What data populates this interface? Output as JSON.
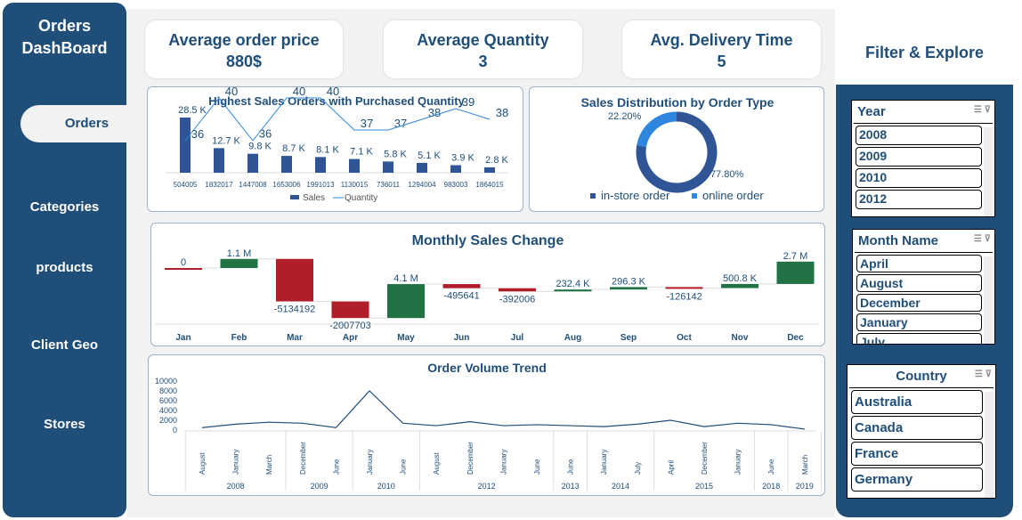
{
  "sidebar": {
    "title": "Orders DashBoard",
    "items": [
      {
        "label": "Orders",
        "active": true
      },
      {
        "label": "Categories"
      },
      {
        "label": "products"
      },
      {
        "label": "Client Geo"
      },
      {
        "label": "Stores"
      }
    ]
  },
  "kpis": [
    {
      "label": "Average order price",
      "value": "880$"
    },
    {
      "label": "Average Quantity",
      "value": "3"
    },
    {
      "label": "Avg. Delivery Time",
      "value": "5"
    }
  ],
  "filter": {
    "title": "Filter & Explore",
    "year": {
      "title": "Year",
      "items": [
        "2008",
        "2009",
        "2010",
        "2012"
      ]
    },
    "month": {
      "title": "Month Name",
      "items": [
        "April",
        "August",
        "December",
        "January",
        "July"
      ]
    },
    "country": {
      "title": "Country",
      "items": [
        "Australia",
        "Canada",
        "France",
        "Germany"
      ]
    }
  },
  "colors": {
    "primary": "#1f4e79",
    "bar": "#2f5597",
    "line": "#2e86de",
    "up": "#217346",
    "down": "#b01e2a",
    "online": "#2e86de"
  },
  "chart_data": [
    {
      "type": "bar",
      "title": "Highest Sales Orders with Purchased Quantity",
      "categories": [
        "504005",
        "1832017",
        "1447008",
        "1653006",
        "1991013",
        "1130015",
        "736011",
        "1294004",
        "983003",
        "1864015"
      ],
      "series": [
        {
          "name": "Sales",
          "type": "bar",
          "values": [
            28500,
            12700,
            9800,
            8700,
            8100,
            7100,
            5800,
            5100,
            3900,
            2800
          ],
          "labels": [
            "28.5 K",
            "12.7 K",
            "9.8 K",
            "8.7 K",
            "8.1 K",
            "7.1 K",
            "5.8 K",
            "5.1 K",
            "3.9 K",
            "2.8 K"
          ]
        },
        {
          "name": "Quantity",
          "type": "line",
          "values": [
            36,
            40,
            36,
            40,
            40,
            37,
            37,
            38,
            39,
            38
          ]
        }
      ],
      "legend": "bottom"
    },
    {
      "type": "pie",
      "title": "Sales Distribution by Order Type",
      "donut": true,
      "slices": [
        {
          "name": "in-store order",
          "value": 77.8,
          "label": "77.80%"
        },
        {
          "name": "online order",
          "value": 22.2,
          "label": "22.20%"
        }
      ],
      "legend": "bottom"
    },
    {
      "type": "bar",
      "subtype": "waterfall",
      "title": "Monthly Sales Change",
      "categories": [
        "Jan",
        "Feb",
        "Mar",
        "Apr",
        "May",
        "Jun",
        "Jul",
        "Aug",
        "Sep",
        "Oct",
        "Nov",
        "Dec"
      ],
      "values": [
        0,
        1100000,
        -5134192,
        -2007703,
        4100000,
        -495641,
        -392006,
        232400,
        296300,
        -126142,
        500800,
        2700000
      ],
      "labels": [
        "0",
        "1.1 M",
        "-5134192",
        "-2007703",
        "4.1 M",
        "-495641",
        "-392006",
        "232.4 K",
        "296.3 K",
        "-126142",
        "500.8 K",
        "2.7 M"
      ]
    },
    {
      "type": "line",
      "title": "Order Volume Trend",
      "ylim": [
        0,
        10000
      ],
      "yticks": [
        "0",
        "2000",
        "4000",
        "6000",
        "8000",
        "10000"
      ],
      "x": [
        {
          "month": "August",
          "year": "2008"
        },
        {
          "month": "January",
          "year": "2008"
        },
        {
          "month": "March",
          "year": "2008"
        },
        {
          "month": "December",
          "year": "2009"
        },
        {
          "month": "June",
          "year": "2009"
        },
        {
          "month": "January",
          "year": "2010"
        },
        {
          "month": "June",
          "year": "2010"
        },
        {
          "month": "August",
          "year": "2012"
        },
        {
          "month": "December",
          "year": "2012"
        },
        {
          "month": "January",
          "year": "2012"
        },
        {
          "month": "June",
          "year": "2012"
        },
        {
          "month": "June",
          "year": "2013"
        },
        {
          "month": "January",
          "year": "2014"
        },
        {
          "month": "July",
          "year": "2014"
        },
        {
          "month": "April",
          "year": "2015"
        },
        {
          "month": "December",
          "year": "2015"
        },
        {
          "month": "January",
          "year": "2015"
        },
        {
          "month": "June",
          "year": "2018"
        },
        {
          "month": "March",
          "year": "2019"
        }
      ],
      "values": [
        500,
        1200,
        1600,
        1400,
        500,
        8000,
        1400,
        900,
        1700,
        900,
        1100,
        900,
        700,
        1200,
        2000,
        700,
        1400,
        1100,
        200
      ]
    }
  ]
}
